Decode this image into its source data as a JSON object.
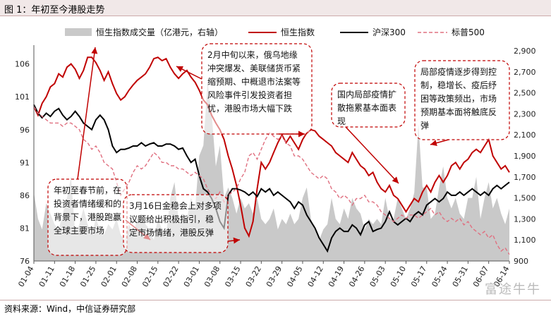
{
  "page": {
    "title": "图 1：年初至今港股走势",
    "source": "资料来源：Wind，中信证券研究部",
    "watermark": "富途牛牛"
  },
  "chart_data": {
    "type": "line",
    "left_axis": {
      "ylim": [
        76,
        108
      ],
      "ticks": [
        76,
        81,
        86,
        91,
        96,
        101,
        106
      ]
    },
    "right_axis": {
      "ylim": [
        900,
        2900
      ],
      "ticks": [
        "900",
        "1,100",
        "1,300",
        "1,500",
        "1,700",
        "1,900",
        "2,100",
        "2,300",
        "2,500",
        "2,700",
        "2,900"
      ]
    },
    "x_tick_labels": [
      "01-04",
      "01-11",
      "01-18",
      "01-25",
      "02-01",
      "02-08",
      "02-15",
      "02-22",
      "03-01",
      "03-08",
      "03-15",
      "03-22",
      "03-29",
      "04-05",
      "04-12",
      "04-19",
      "04-26",
      "05-03",
      "05-10",
      "05-17",
      "05-24",
      "05-31",
      "06-07",
      "06-14"
    ],
    "grid": false,
    "legend_position": "top",
    "series": [
      {
        "name": "恒生指数成交量（亿港元，右轴）",
        "kind": "area",
        "axis": "right",
        "color": "#c9c9c9",
        "values": [
          1550,
          1300,
          1200,
          1450,
          1350,
          1250,
          1200,
          1350,
          1500,
          1700,
          1150,
          1250,
          1400,
          1250,
          1150,
          1300,
          1200,
          1150,
          1250,
          1200,
          1300,
          1150,
          1100,
          1250,
          1150,
          1300,
          1350,
          1250,
          1200,
          1100,
          1300,
          1200,
          1150,
          1500,
          1650,
          1300,
          1350,
          1300,
          1500,
          1400,
          1900,
          2000,
          2600,
          2300,
          1800,
          2000,
          1500,
          1600,
          1500,
          1350,
          1500,
          1400,
          1450,
          1350,
          1500,
          1300,
          1250,
          1300,
          1400,
          1200,
          1300,
          1250,
          1350,
          1250,
          1300,
          1500,
          1600,
          1300,
          1200,
          1100,
          1200,
          1250,
          1500,
          1300,
          1250,
          1400,
          1300,
          1500,
          1400,
          1350,
          1200,
          1300,
          1250,
          1300,
          1250,
          1500,
          1300,
          1300,
          1500,
          1400,
          1300,
          1400,
          1550,
          2200,
          1600,
          1600,
          1300,
          1350,
          1600,
          1800,
          1500,
          1400,
          1500,
          1350,
          1300,
          1500,
          1500,
          1700,
          1300,
          1500,
          1650,
          1400,
          1500,
          1350,
          1250,
          1400
        ]
      },
      {
        "name": "恒生指数",
        "kind": "line",
        "axis": "left",
        "color": "#c00000",
        "values": [
          99.5,
          98.2,
          100.0,
          101.0,
          102.5,
          103.0,
          104.5,
          104.0,
          105.5,
          106.0,
          105.2,
          103.8,
          105.0,
          107.0,
          107.0,
          106.2,
          105.0,
          103.5,
          104.8,
          103.0,
          101.5,
          100.5,
          101.0,
          102.0,
          102.8,
          103.5,
          104.0,
          104.5,
          105.5,
          106.8,
          107.0,
          106.5,
          106.8,
          105.5,
          104.5,
          103.8,
          104.5,
          105.0,
          104.0,
          103.2,
          102.0,
          100.5,
          99.8,
          98.2,
          97.0,
          96.0,
          94.5,
          92.0,
          90.0,
          87.5,
          84.5,
          81.0,
          79.8,
          82.0,
          87.0,
          91.0,
          90.0,
          91.0,
          92.5,
          94.0,
          95.2,
          94.0,
          95.0,
          94.0,
          93.0,
          94.5,
          95.5,
          96.0,
          95.8,
          95.0,
          94.5,
          94.0,
          93.5,
          92.5,
          92.0,
          91.5,
          91.0,
          92.5,
          91.5,
          90.5,
          90.0,
          89.0,
          89.5,
          88.0,
          87.0,
          86.5,
          87.5,
          86.0,
          85.5,
          84.5,
          83.5,
          84.5,
          85.5,
          85.0,
          86.5,
          87.5,
          86.5,
          88.0,
          89.0,
          88.0,
          89.0,
          90.5,
          91.0,
          90.0,
          91.0,
          91.5,
          92.5,
          93.0,
          92.5,
          93.5,
          94.5,
          92.0,
          91.0,
          90.0,
          90.5,
          89.5
        ]
      },
      {
        "name": "沪深300",
        "kind": "line",
        "axis": "left",
        "color": "#000000",
        "values": [
          99.8,
          98.5,
          97.8,
          98.5,
          98.0,
          98.8,
          99.2,
          98.2,
          97.5,
          98.0,
          98.8,
          98.0,
          97.0,
          96.5,
          96.0,
          97.5,
          98.2,
          97.5,
          96.0,
          93.5,
          92.5,
          93.0,
          93.0,
          93.2,
          93.5,
          93.5,
          94.0,
          93.5,
          93.8,
          94.0,
          93.5,
          93.5,
          93.8,
          93.8,
          93.5,
          93.0,
          93.2,
          92.0,
          91.0,
          91.5,
          89.0,
          87.0,
          86.5,
          85.5,
          84.0,
          82.0,
          81.0,
          86.0,
          87.0,
          87.0,
          86.8,
          86.5,
          86.0,
          86.5,
          85.8,
          87.0,
          86.5,
          87.0,
          86.0,
          86.5,
          86.0,
          85.5,
          85.0,
          84.0,
          85.0,
          84.5,
          83.0,
          82.0,
          81.0,
          79.5,
          78.5,
          77.5,
          79.5,
          80.5,
          81.0,
          80.5,
          80.5,
          81.5,
          81.0,
          80.0,
          81.5,
          82.0,
          80.5,
          80.8,
          81.0,
          82.0,
          83.5,
          82.0,
          81.5,
          82.0,
          82.5,
          82.0,
          83.0,
          83.5,
          83.0,
          84.5,
          85.0,
          85.5,
          85.0,
          85.5,
          86.5,
          86.0,
          86.0,
          86.5,
          86.0,
          86.5,
          87.0,
          86.5,
          86.0,
          86.5,
          86.0,
          87.0,
          87.5,
          87.0,
          87.5,
          88.0
        ]
      },
      {
        "name": "标普500",
        "kind": "dashed",
        "axis": "left",
        "color": "#e07080",
        "values": [
          99.5,
          98.5,
          98.0,
          97.5,
          97.0,
          97.0,
          97.0,
          96.5,
          97.0,
          97.0,
          96.5,
          96.0,
          94.5,
          94.0,
          93.0,
          93.5,
          92.5,
          91.0,
          90.5,
          90.0,
          88.0,
          86.0,
          87.0,
          88.0,
          89.5,
          90.5,
          90.0,
          90.5,
          91.5,
          92.5,
          92.0,
          91.0,
          91.0,
          90.5,
          90.5,
          90.0,
          90.0,
          89.5,
          89.0,
          89.5,
          89.0,
          88.5,
          87.0,
          86.0,
          85.5,
          86.5,
          85.0,
          86.0,
          86.5,
          87.0,
          88.5,
          89.5,
          92.0,
          92.5,
          91.5,
          93.0,
          94.5,
          95.5,
          95.0,
          94.5,
          95.0,
          94.0,
          93.5,
          92.0,
          92.0,
          91.5,
          90.5,
          89.5,
          89.0,
          88.5,
          89.0,
          88.5,
          87.0,
          86.5,
          85.5,
          86.0,
          85.5,
          84.5,
          85.5,
          85.5,
          86.0,
          85.0,
          85.0,
          84.5,
          83.5,
          83.0,
          82.5,
          82.0,
          82.5,
          83.0,
          82.5,
          83.0,
          83.0,
          82.5,
          83.0,
          83.5,
          84.0,
          83.0,
          83.5,
          82.5,
          82.0,
          82.5,
          82.0,
          82.5,
          81.5,
          82.0,
          81.0,
          80.5,
          80.0,
          80.5,
          79.5,
          80.0,
          78.5,
          77.5,
          78.0,
          77.0
        ]
      }
    ],
    "annotations": [
      {
        "text": "年初至春节前，在投资者情绪缓和的背景下，港股跑赢全球主要市场"
      },
      {
        "text": "2月中旬以来，俄乌地缘冲突爆发、美联储货币紧缩预期、中概退市法案等风险事件引发投资者担忧，港股市场大幅下跌"
      },
      {
        "text": "3月16日金稳会上对多项议题给出积极指引，稳定市场情绪，港股反弹"
      },
      {
        "text": "国内局部疫情扩散拖累基本面表现"
      },
      {
        "text": "局部疫情逐步得到控制，稳增长、疫后纾困等政策频出，市场预期基本面将触底反弹"
      }
    ]
  }
}
